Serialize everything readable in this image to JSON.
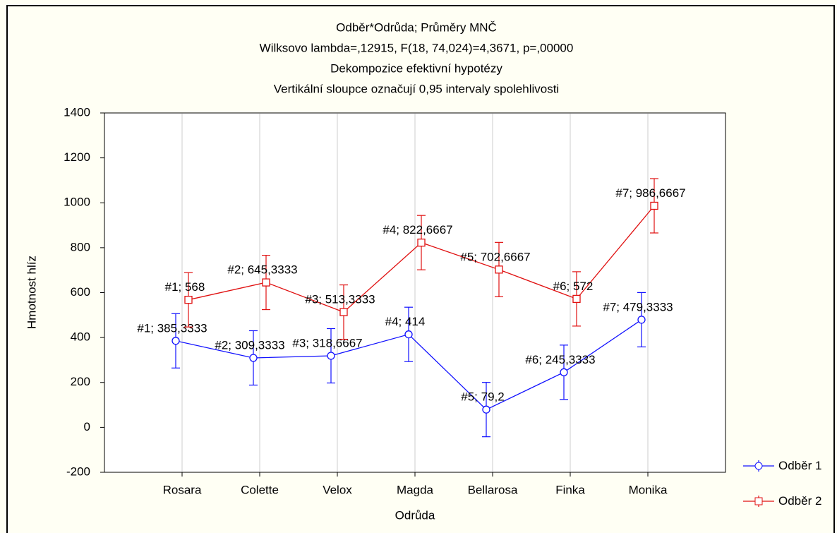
{
  "chart_data": {
    "type": "line",
    "title": "Odběr*Odrůda; Průměry MNČ",
    "subtitle": [
      "Wilksovo lambda=,12915, F(18, 74,024)=4,3671, p=,00000",
      "Dekompozice efektivní hypotézy",
      "Vertikální sloupce označují 0,95 intervaly spolehlivosti"
    ],
    "x_label": "Odrůda",
    "y_label": "Hmotnost hlíz",
    "categories": [
      "Rosara",
      "Colette",
      "Velox",
      "Magda",
      "Bellarosa",
      "Finka",
      "Monika"
    ],
    "series": [
      {
        "name": "Odběr 1",
        "color": "#1010ff",
        "marker": "circle",
        "values": [
          385.3333,
          309.3333,
          318.6667,
          414,
          79.2,
          245.3333,
          479.3333
        ],
        "value_labels": [
          "#1; 385,3333",
          "#2; 309,3333",
          "#3; 318,6667",
          "#4; 414",
          "#5; 79,2",
          "#6; 245,3333",
          "#7; 479,3333"
        ],
        "errors": [
          121,
          121,
          121,
          121,
          121,
          121,
          121
        ]
      },
      {
        "name": "Odběr 2",
        "color": "#e01010",
        "marker": "square",
        "values": [
          568,
          645.3333,
          513.3333,
          822.6667,
          702.6667,
          572,
          986.6667
        ],
        "value_labels": [
          "#1; 568",
          "#2; 645,3333",
          "#3; 513,3333",
          "#4; 822,6667",
          "#5; 702,6667",
          "#6; 572",
          "#7; 986,6667"
        ],
        "errors": [
          121,
          121,
          121,
          121,
          121,
          121,
          121
        ]
      }
    ],
    "ylim": [
      -200,
      1400
    ],
    "yticks": [
      -200,
      0,
      200,
      400,
      600,
      800,
      1000,
      1200,
      1400
    ],
    "grid": "x",
    "legend": "lower right"
  }
}
